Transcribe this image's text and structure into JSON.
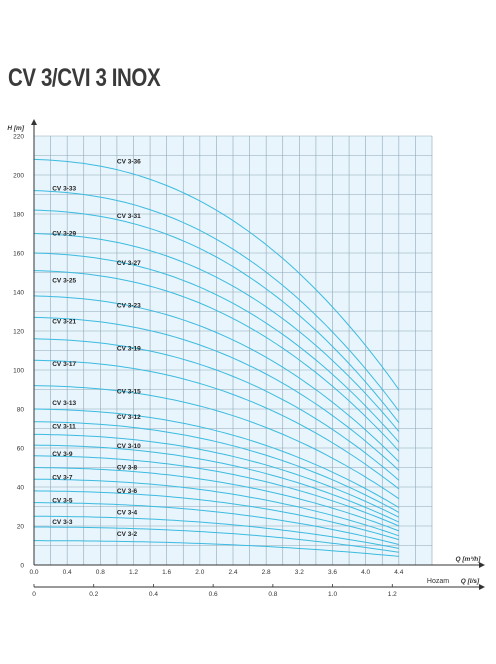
{
  "title": "CV 3/CVI 3 INOX",
  "colors": {
    "plot_bg": "#e8f5fc",
    "grid": "#8fa8b8",
    "curve": "#3cbbe0",
    "text": "#333333"
  },
  "chart_data": {
    "type": "line",
    "title": "CV 3/CVI 3 INOX",
    "ylabel": "H [m]",
    "xlabel": "Q [m³/h]",
    "x2label": "Q [l/s]",
    "x2prefix": "Hozam",
    "xlim": [
      0,
      4.8
    ],
    "ylim": [
      0,
      220
    ],
    "x2lim": [
      0,
      1.333
    ],
    "yticks": [
      0,
      20,
      40,
      60,
      80,
      100,
      120,
      140,
      160,
      180,
      200,
      220
    ],
    "xticks": [
      0.0,
      0.4,
      0.8,
      1.2,
      1.6,
      2.0,
      2.4,
      2.8,
      3.2,
      3.6,
      4.0,
      4.4
    ],
    "xtick_labels": [
      "0.0",
      "0.4",
      "0.8",
      "1.2",
      "1.6",
      "2.0",
      "2.4",
      "2.8",
      "3.2",
      "3.6",
      "4.0",
      "4.4"
    ],
    "x2ticks": [
      0,
      0.2,
      0.4,
      0.6,
      0.8,
      1.0,
      1.2
    ],
    "x2tick_labels": [
      "0",
      "0.2",
      "0.4",
      "0.6",
      "0.8",
      "1.0",
      "1.2"
    ],
    "grid": true,
    "series": [
      {
        "name": "CV 3-2",
        "shutoff": 12.5,
        "end": 4.4
      },
      {
        "name": "CV 3-3",
        "shutoff": 19.5,
        "end": 6.5
      },
      {
        "name": "CV 3-4",
        "shutoff": 25.0,
        "end": 8.5
      },
      {
        "name": "CV 3-5",
        "shutoff": 32.0,
        "end": 10.5
      },
      {
        "name": "CV 3-6",
        "shutoff": 38.0,
        "end": 13.0
      },
      {
        "name": "CV 3-7",
        "shutoff": 44.0,
        "end": 15.0
      },
      {
        "name": "CV 3-8",
        "shutoff": 50.0,
        "end": 17.5
      },
      {
        "name": "CV 3-9",
        "shutoff": 56.0,
        "end": 20.0
      },
      {
        "name": "CV 3-10",
        "shutoff": 61.5,
        "end": 22.0
      },
      {
        "name": "CV 3-11",
        "shutoff": 67.0,
        "end": 24.5
      },
      {
        "name": "CV 3-12",
        "shutoff": 73.5,
        "end": 27.0
      },
      {
        "name": "CV 3-13",
        "shutoff": 80.0,
        "end": 29.5
      },
      {
        "name": "CV 3-15",
        "shutoff": 92.0,
        "end": 34.0
      },
      {
        "name": "CV 3-17",
        "shutoff": 105.0,
        "end": 39.0
      },
      {
        "name": "CV 3-19",
        "shutoff": 116.0,
        "end": 43.5
      },
      {
        "name": "CV 3-21",
        "shutoff": 127.0,
        "end": 48.5
      },
      {
        "name": "CV 3-23",
        "shutoff": 138.0,
        "end": 53.0
      },
      {
        "name": "CV 3-25",
        "shutoff": 151.0,
        "end": 58.5
      },
      {
        "name": "CV 3-27",
        "shutoff": 160.0,
        "end": 63.0
      },
      {
        "name": "CV 3-29",
        "shutoff": 170.0,
        "end": 68.5
      },
      {
        "name": "CV 3-31",
        "shutoff": 182.0,
        "end": 73.0
      },
      {
        "name": "CV 3-33",
        "shutoff": 192.0,
        "end": 79.0
      },
      {
        "name": "CV 3-36",
        "shutoff": 208.0,
        "end": 90.0
      }
    ],
    "labels": [
      {
        "series": "CV 3-36",
        "x": 1.0,
        "y": 207
      },
      {
        "series": "CV 3-33",
        "x": 0.22,
        "y": 193
      },
      {
        "series": "CV 3-31",
        "x": 1.0,
        "y": 179
      },
      {
        "series": "CV 3-29",
        "x": 0.22,
        "y": 170
      },
      {
        "series": "CV 3-27",
        "x": 1.0,
        "y": 155
      },
      {
        "series": "CV 3-25",
        "x": 0.22,
        "y": 146
      },
      {
        "series": "CV 3-23",
        "x": 1.0,
        "y": 133
      },
      {
        "series": "CV 3-21",
        "x": 0.22,
        "y": 125
      },
      {
        "series": "CV 3-19",
        "x": 1.0,
        "y": 111
      },
      {
        "series": "CV 3-17",
        "x": 0.22,
        "y": 103
      },
      {
        "series": "CV 3-15",
        "x": 1.0,
        "y": 89
      },
      {
        "series": "CV 3-13",
        "x": 0.22,
        "y": 83
      },
      {
        "series": "CV 3-12",
        "x": 1.0,
        "y": 76
      },
      {
        "series": "CV 3-11",
        "x": 0.22,
        "y": 71
      },
      {
        "series": "CV 3-10",
        "x": 1.0,
        "y": 61
      },
      {
        "series": "CV 3-9",
        "x": 0.22,
        "y": 57
      },
      {
        "series": "CV 3-8",
        "x": 1.0,
        "y": 50
      },
      {
        "series": "CV 3-7",
        "x": 0.22,
        "y": 45
      },
      {
        "series": "CV 3-6",
        "x": 1.0,
        "y": 38
      },
      {
        "series": "CV 3-5",
        "x": 0.22,
        "y": 33
      },
      {
        "series": "CV 3-4",
        "x": 1.0,
        "y": 27
      },
      {
        "series": "CV 3-3",
        "x": 0.22,
        "y": 22
      },
      {
        "series": "CV 3-2",
        "x": 1.0,
        "y": 16
      }
    ]
  }
}
